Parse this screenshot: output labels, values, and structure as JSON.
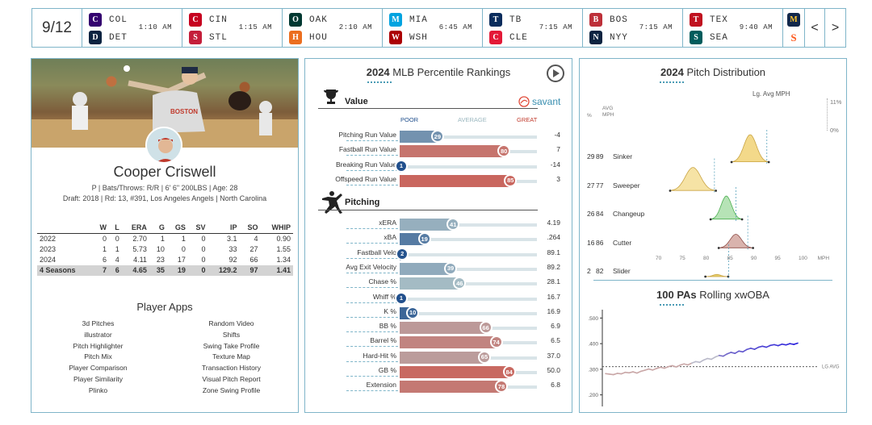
{
  "scorebar": {
    "date": "9/12",
    "games": [
      {
        "away": "COL",
        "home": "DET",
        "time": "1:10 AM",
        "away_color": "#33006f",
        "home_color": "#0c2340",
        "away_icon": "rockies-logo-icon",
        "home_icon": "tigers-logo-icon"
      },
      {
        "away": "CIN",
        "home": "STL",
        "time": "1:15 AM",
        "away_color": "#c6011f",
        "home_color": "#c41e3a",
        "away_icon": "reds-logo-icon",
        "home_icon": "cardinals-logo-icon"
      },
      {
        "away": "OAK",
        "home": "HOU",
        "time": "2:10 AM",
        "away_color": "#003831",
        "home_color": "#eb6e1f",
        "away_icon": "athletics-logo-icon",
        "home_icon": "astros-logo-icon"
      },
      {
        "away": "MIA",
        "home": "WSH",
        "time": "6:45 AM",
        "away_color": "#00a3e0",
        "home_color": "#ab0003",
        "away_icon": "marlins-logo-icon",
        "home_icon": "nationals-logo-icon"
      },
      {
        "away": "TB",
        "home": "CLE",
        "time": "7:15 AM",
        "away_color": "#092c5c",
        "home_color": "#e31937",
        "away_icon": "rays-logo-icon",
        "home_icon": "guardians-logo-icon"
      },
      {
        "away": "BOS",
        "home": "NYY",
        "time": "7:15 AM",
        "away_color": "#bd3039",
        "home_color": "#0c2340",
        "away_icon": "red-sox-logo-icon",
        "home_icon": "yankees-logo-icon"
      },
      {
        "away": "TEX",
        "home": "SEA",
        "time": "9:40 AM",
        "away_color": "#c0111f",
        "home_color": "#005c5c",
        "away_icon": "rangers-logo-icon",
        "home_icon": "mariners-logo-icon"
      }
    ],
    "partial_logos": {
      "top_color": "#ffc52f",
      "bottom_color": "#fd5a1e"
    },
    "prev_arrow": "<",
    "next_arrow": ">"
  },
  "player": {
    "name": "Cooper Criswell",
    "info": "P | Bats/Throws: R/R | 6' 6\" 200LBS | Age: 28",
    "draft": "Draft: 2018 | Rd: 13, #391, Los Angeles Angels | North Carolina",
    "jersey_text": "BOSTON",
    "stats_headers": [
      "",
      "W",
      "L",
      "ERA",
      "G",
      "GS",
      "SV",
      "IP",
      "SO",
      "WHIP"
    ],
    "stats_rows": [
      [
        "2022",
        "0",
        "0",
        "2.70",
        "1",
        "1",
        "0",
        "3.1",
        "4",
        "0.90"
      ],
      [
        "2023",
        "1",
        "1",
        "5.73",
        "10",
        "0",
        "0",
        "33",
        "27",
        "1.55"
      ],
      [
        "2024",
        "6",
        "4",
        "4.11",
        "23",
        "17",
        "0",
        "92",
        "66",
        "1.34"
      ]
    ],
    "stats_total": [
      "4 Seasons",
      "7",
      "6",
      "4.65",
      "35",
      "19",
      "0",
      "129.2",
      "97",
      "1.41"
    ],
    "apps_title": "Player Apps",
    "apps_left": [
      "3d Pitches",
      "illustrator",
      "Pitch Highlighter",
      "Pitch Mix",
      "Player Comparison",
      "Player Similarity",
      "Plinko"
    ],
    "apps_right": [
      "Random Video",
      "Shifts",
      "Swing Take Profile",
      "Texture Map",
      "Transaction History",
      "Visual Pitch Report",
      "Zone Swing Profile"
    ]
  },
  "rankings": {
    "title_year": "2024",
    "title_rest": "MLB Percentile Rankings",
    "value_label": "Value",
    "savant_label": "savant",
    "poor_label": "POOR",
    "average_label": "AVERAGE",
    "great_label": "GREAT",
    "pitching_label": "Pitching",
    "value_rows": [
      {
        "label": "Pitching Run Value",
        "pct": 29,
        "value": "-4"
      },
      {
        "label": "Fastball Run Value",
        "pct": 80,
        "value": "7"
      },
      {
        "label": "Breaking Run Value",
        "pct": 1,
        "value": "-14"
      },
      {
        "label": "Offspeed Run Value",
        "pct": 85,
        "value": "3"
      }
    ],
    "pitching_rows": [
      {
        "label": "xERA",
        "pct": 41,
        "value": "4.19"
      },
      {
        "label": "xBA",
        "pct": 19,
        "value": ".264"
      },
      {
        "label": "Fastball Velo",
        "pct": 2,
        "value": "89.1"
      },
      {
        "label": "Avg Exit Velocity",
        "pct": 39,
        "value": "89.2"
      },
      {
        "label": "Chase %",
        "pct": 46,
        "value": "28.1"
      },
      {
        "label": "Whiff %",
        "pct": 1,
        "value": "16.7"
      },
      {
        "label": "K %",
        "pct": 10,
        "value": "16.9"
      },
      {
        "label": "BB %",
        "pct": 66,
        "value": "6.9"
      },
      {
        "label": "Barrel %",
        "pct": 74,
        "value": "6.5"
      },
      {
        "label": "Hard-Hit %",
        "pct": 65,
        "value": "37.0"
      },
      {
        "label": "GB %",
        "pct": 84,
        "value": "50.0"
      },
      {
        "label": "Extension",
        "pct": 78,
        "value": "6.8"
      }
    ]
  },
  "distribution": {
    "title_year": "2024",
    "title_rest": "Pitch Distribution",
    "lg_avg_label": "Lg. Avg MPH",
    "col_pct": "%",
    "col_avg": "AVG",
    "col_mph": "MPH",
    "scale_top": "11%",
    "scale_bottom": "0%",
    "x_ticks": [
      "70",
      "75",
      "80",
      "85",
      "90",
      "95",
      "100",
      "MPH"
    ],
    "pitches": [
      {
        "pct": "29",
        "mph": "89",
        "name": "Sinker",
        "color": "#f3d98a",
        "stroke": "#c9a443",
        "center": 89,
        "spread": 1.3,
        "height": 1.0,
        "lg_avg": 92.5
      },
      {
        "pct": "27",
        "mph": "77",
        "name": "Sweeper",
        "color": "#f6e3a5",
        "stroke": "#c9a443",
        "center": 77,
        "spread": 1.6,
        "height": 0.85,
        "lg_avg": 81.5
      },
      {
        "pct": "26",
        "mph": "84",
        "name": "Changeup",
        "color": "#b6e3b6",
        "stroke": "#4caf50",
        "center": 84,
        "spread": 1.1,
        "height": 0.85,
        "lg_avg": 86
      },
      {
        "pct": "16",
        "mph": "86",
        "name": "Cutter",
        "color": "#d9b3ad",
        "stroke": "#8b4a44",
        "center": 86,
        "spread": 1.2,
        "height": 0.5,
        "lg_avg": 88.5
      },
      {
        "pct": "2",
        "mph": "82",
        "name": "Slider",
        "color": "#e6cf6a",
        "stroke": "#c9a443",
        "center": 82,
        "spread": 0.8,
        "height": 0.08,
        "lg_avg": 84.5
      }
    ],
    "rolling_title_bold": "100 PAs",
    "rolling_title_rest": "Rolling xwOBA",
    "lg_avg_tag": "LG AVG"
  },
  "chart_data": {
    "type": "line",
    "title": "100 PAs Rolling xwOBA",
    "ylim": [
      0.18,
      0.52
    ],
    "y_ticks": [
      ".500",
      ".400",
      ".300",
      ".200"
    ],
    "lg_avg": 0.31,
    "series": [
      {
        "values": [
          0.283,
          0.281,
          0.279,
          0.284,
          0.282,
          0.288,
          0.286,
          0.29,
          0.285,
          0.292,
          0.296,
          0.301,
          0.297,
          0.303,
          0.308,
          0.304,
          0.31,
          0.314,
          0.309,
          0.316,
          0.321,
          0.317,
          0.324,
          0.33,
          0.327,
          0.336,
          0.342,
          0.339,
          0.348,
          0.354,
          0.351,
          0.36,
          0.366,
          0.362,
          0.371,
          0.368,
          0.377,
          0.382,
          0.378,
          0.386,
          0.39,
          0.386,
          0.393,
          0.396,
          0.392,
          0.398,
          0.395,
          0.4,
          0.397,
          0.402
        ]
      }
    ]
  }
}
